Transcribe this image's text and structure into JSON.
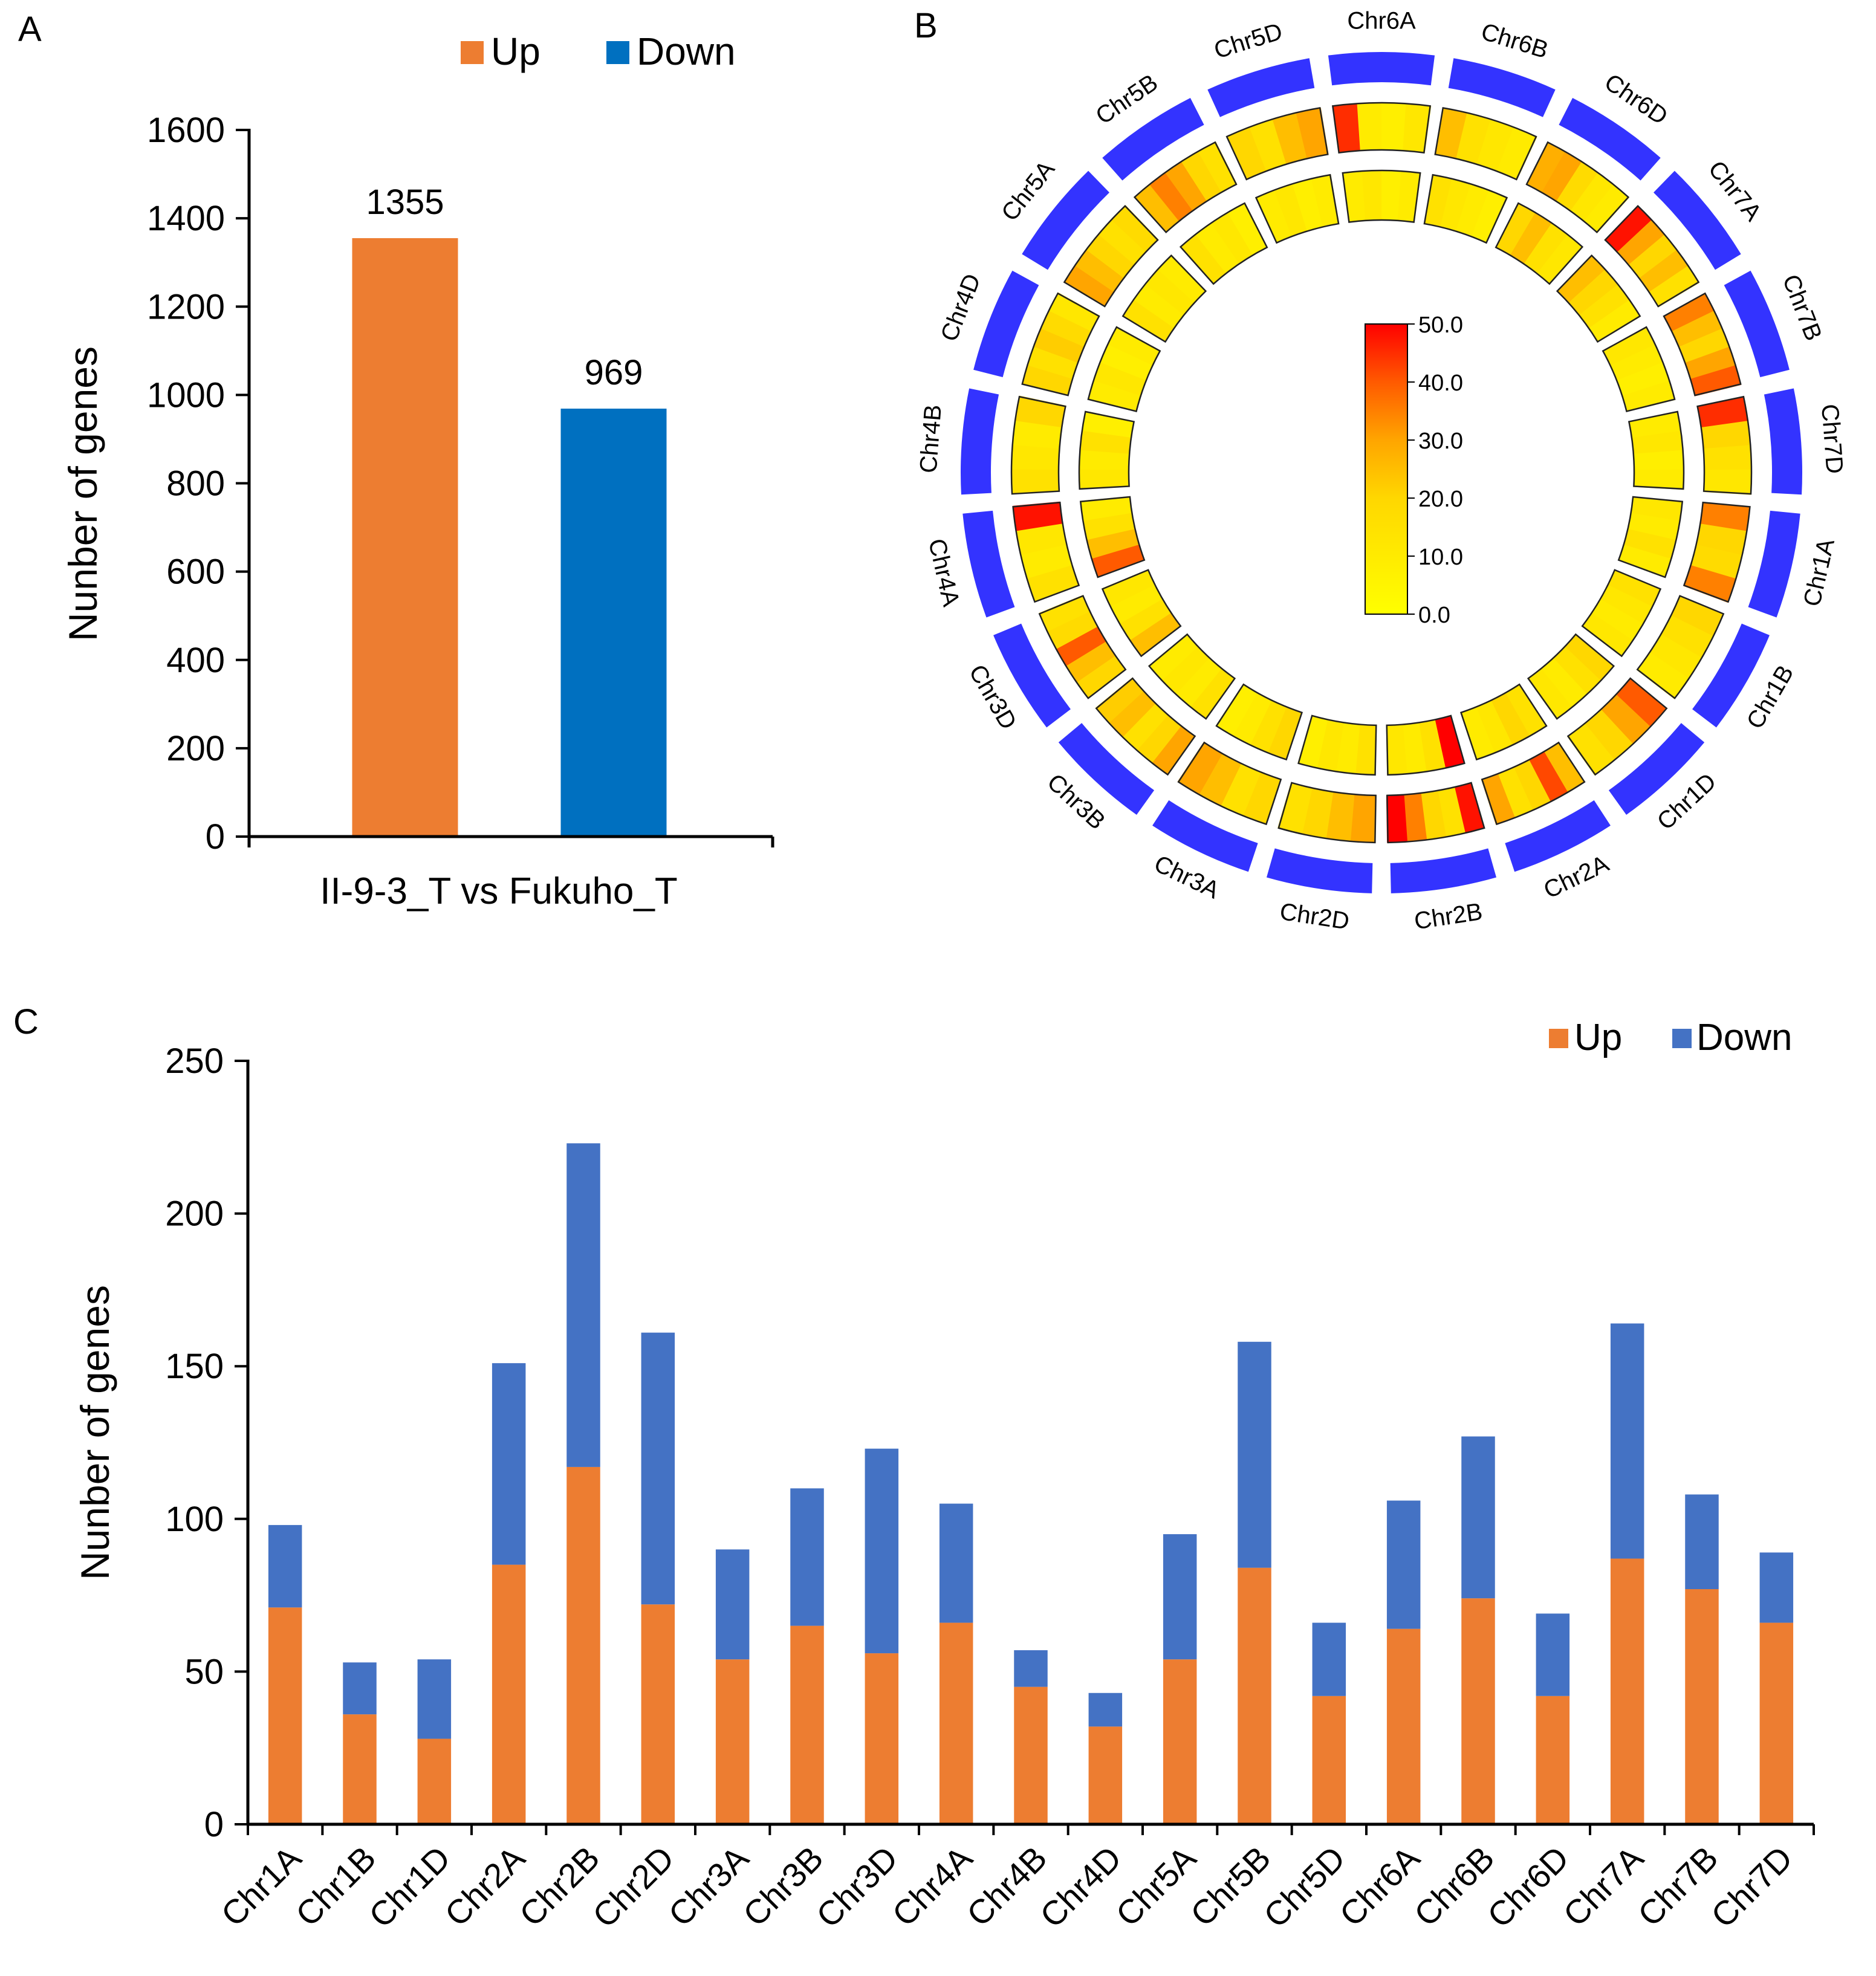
{
  "panels": {
    "a": "A",
    "b": "B",
    "c": "C"
  },
  "colors": {
    "up": "#ED7D31",
    "down": "#0070C0",
    "down_c": "#4472C4",
    "ring": "#3333FF"
  },
  "chart_data": [
    {
      "type": "bar",
      "panel": "A",
      "categories": [
        "II-9-3_T vs Fukuho_T"
      ],
      "series": [
        {
          "name": "Up",
          "values": [
            1355
          ]
        },
        {
          "name": "Down",
          "values": [
            969
          ]
        }
      ],
      "data_labels": [
        "1355",
        "969"
      ],
      "xlabel": "II-9-3_T vs Fukuho_T",
      "ylabel": "Nunber of genes",
      "ylim": [
        0,
        1600
      ],
      "yticks": [
        "0",
        "200",
        "400",
        "600",
        "800",
        "1000",
        "1200",
        "1400",
        "1600"
      ],
      "legend": [
        "Up",
        "Down"
      ],
      "legend_position": "top-center"
    },
    {
      "type": "heatmap",
      "panel": "B",
      "layout": "circular",
      "chromosomes": [
        "Chr6A",
        "Chr6B",
        "Chr6D",
        "Chr7A",
        "Chr7B",
        "Chr7D",
        "Chr1A",
        "Chr1B",
        "Chr1D",
        "Chr2A",
        "Chr2B",
        "Chr2D",
        "Chr3A",
        "Chr3B",
        "Chr3D",
        "Chr4A",
        "Chr4B",
        "Chr4D",
        "Chr5A",
        "Chr5B",
        "Chr5D"
      ],
      "colorbar": {
        "min": 0,
        "max": 50,
        "ticks": [
          "50.0",
          "40.0",
          "30.0",
          "20.0",
          "10.0",
          "0.0"
        ]
      },
      "outer_track": [
        [
          45,
          10,
          8,
          12
        ],
        [
          25,
          15,
          12,
          10
        ],
        [
          28,
          30,
          18,
          12,
          10
        ],
        [
          48,
          30,
          20,
          25,
          15
        ],
        [
          35,
          25,
          20,
          30,
          40
        ],
        [
          45,
          20,
          15,
          12
        ],
        [
          35,
          20,
          18,
          35
        ],
        [
          20,
          15,
          12,
          10
        ],
        [
          40,
          30,
          20,
          15
        ],
        [
          25,
          42,
          20,
          15,
          30
        ],
        [
          48,
          15,
          20,
          35,
          50
        ],
        [
          30,
          25,
          20,
          15
        ],
        [
          20,
          15,
          25,
          30
        ],
        [
          30,
          20,
          15,
          25,
          22
        ],
        [
          20,
          25,
          40,
          18,
          15
        ],
        [
          15,
          10,
          12,
          48
        ],
        [
          15,
          12,
          10,
          20
        ],
        [
          20,
          15,
          22,
          18,
          12
        ],
        [
          30,
          25,
          20,
          15,
          18
        ],
        [
          25,
          35,
          30,
          20,
          15
        ],
        [
          20,
          15,
          25,
          30
        ]
      ],
      "inner_track": [
        [
          10,
          12,
          8,
          10
        ],
        [
          15,
          12,
          10,
          8
        ],
        [
          20,
          25,
          15,
          12
        ],
        [
          25,
          20,
          15,
          10
        ],
        [
          12,
          10,
          8,
          10
        ],
        [
          10,
          12,
          8,
          10
        ],
        [
          12,
          10,
          15,
          10
        ],
        [
          15,
          12,
          10,
          12
        ],
        [
          20,
          15,
          10,
          12
        ],
        [
          15,
          20,
          12,
          10
        ],
        [
          50,
          15,
          10,
          12
        ],
        [
          15,
          10,
          12,
          8
        ],
        [
          20,
          15,
          10,
          8
        ],
        [
          15,
          10,
          12,
          10
        ],
        [
          25,
          15,
          10,
          12
        ],
        [
          40,
          25,
          15,
          10
        ],
        [
          12,
          10,
          15,
          8
        ],
        [
          10,
          12,
          8,
          10
        ],
        [
          15,
          10,
          12,
          10
        ],
        [
          15,
          10,
          12,
          8
        ],
        [
          10,
          12,
          8,
          10
        ]
      ]
    },
    {
      "type": "bar",
      "stacked": true,
      "panel": "C",
      "categories": [
        "Chr1A",
        "Chr1B",
        "Chr1D",
        "Chr2A",
        "Chr2B",
        "Chr2D",
        "Chr3A",
        "Chr3B",
        "Chr3D",
        "Chr4A",
        "Chr4B",
        "Chr4D",
        "Chr5A",
        "Chr5B",
        "Chr5D",
        "Chr6A",
        "Chr6B",
        "Chr6D",
        "Chr7A",
        "Chr7B",
        "Chr7D"
      ],
      "series": [
        {
          "name": "Up",
          "values": [
            71,
            36,
            28,
            85,
            117,
            72,
            54,
            65,
            56,
            66,
            45,
            32,
            54,
            84,
            42,
            64,
            74,
            42,
            87,
            77,
            66
          ]
        },
        {
          "name": "Down",
          "values": [
            27,
            17,
            26,
            66,
            106,
            89,
            36,
            45,
            67,
            39,
            12,
            11,
            41,
            74,
            24,
            42,
            53,
            27,
            77,
            31,
            23
          ]
        }
      ],
      "xlabel": "",
      "ylabel": "Nunber of genes",
      "ylim": [
        0,
        250
      ],
      "yticks": [
        "0",
        "50",
        "100",
        "150",
        "200",
        "250"
      ],
      "legend": [
        "Up",
        "Down"
      ],
      "legend_position": "top-right"
    }
  ]
}
